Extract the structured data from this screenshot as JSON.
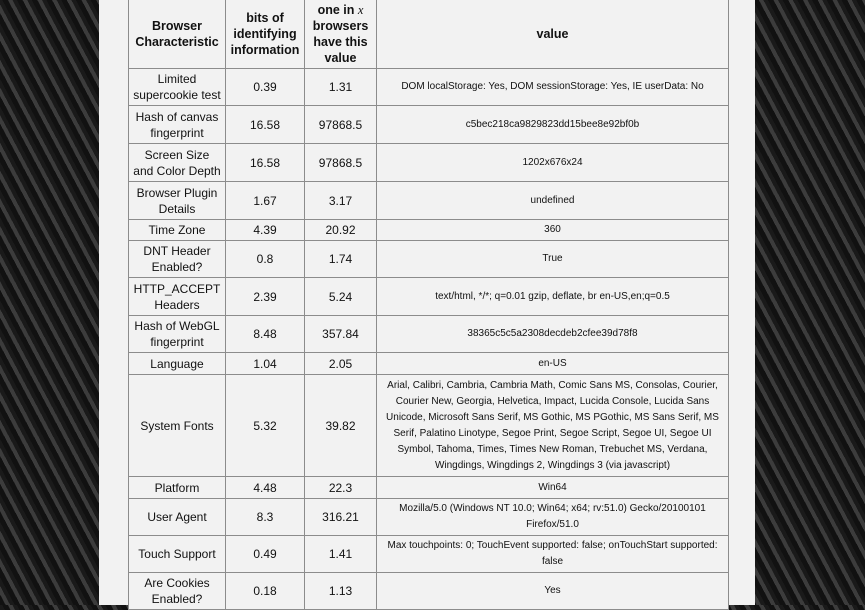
{
  "table": {
    "headers": [
      "Browser Characteristic",
      "bits of identifying information",
      "one in x browsers have this value",
      "value"
    ],
    "header_3_prefix": "one in ",
    "header_3_var": "x",
    "header_3_suffix": " browsers have this value",
    "rows": [
      {
        "characteristic": "Limited supercookie test",
        "bits": "0.39",
        "one_in_x": "1.31",
        "value": "DOM localStorage: Yes, DOM sessionStorage: Yes, IE userData: No"
      },
      {
        "characteristic": "Hash of canvas fingerprint",
        "bits": "16.58",
        "one_in_x": "97868.5",
        "value": "c5bec218ca9829823dd15bee8e92bf0b"
      },
      {
        "characteristic": "Screen Size and Color Depth",
        "bits": "16.58",
        "one_in_x": "97868.5",
        "value": "1202x676x24"
      },
      {
        "characteristic": "Browser Plugin Details",
        "bits": "1.67",
        "one_in_x": "3.17",
        "value": "undefined"
      },
      {
        "characteristic": "Time Zone",
        "bits": "4.39",
        "one_in_x": "20.92",
        "value": "360"
      },
      {
        "characteristic": "DNT Header Enabled?",
        "bits": "0.8",
        "one_in_x": "1.74",
        "value": "True"
      },
      {
        "characteristic": "HTTP_ACCEPT Headers",
        "bits": "2.39",
        "one_in_x": "5.24",
        "value": "text/html, */*; q=0.01 gzip, deflate, br en-US,en;q=0.5"
      },
      {
        "characteristic": "Hash of WebGL fingerprint",
        "bits": "8.48",
        "one_in_x": "357.84",
        "value": "38365c5c5a2308decdeb2cfee39d78f8"
      },
      {
        "characteristic": "Language",
        "bits": "1.04",
        "one_in_x": "2.05",
        "value": "en-US"
      },
      {
        "characteristic": "System Fonts",
        "bits": "5.32",
        "one_in_x": "39.82",
        "value": "Arial, Calibri, Cambria, Cambria Math, Comic Sans MS, Consolas, Courier, Courier New, Georgia, Helvetica, Impact, Lucida Console, Lucida Sans Unicode, Microsoft Sans Serif, MS Gothic, MS PGothic, MS Sans Serif, MS Serif, Palatino Linotype, Segoe Print, Segoe Script, Segoe UI, Segoe UI Symbol, Tahoma, Times, Times New Roman, Trebuchet MS, Verdana, Wingdings, Wingdings 2, Wingdings 3 (via javascript)"
      },
      {
        "characteristic": "Platform",
        "bits": "4.48",
        "one_in_x": "22.3",
        "value": "Win64"
      },
      {
        "characteristic": "User Agent",
        "bits": "8.3",
        "one_in_x": "316.21",
        "value": "Mozilla/5.0 (Windows NT 10.0; Win64; x64; rv:51.0) Gecko/20100101 Firefox/51.0"
      },
      {
        "characteristic": "Touch Support",
        "bits": "0.49",
        "one_in_x": "1.41",
        "value": "Max touchpoints: 0; TouchEvent supported: false; onTouchStart supported: false"
      },
      {
        "characteristic": "Are Cookies Enabled?",
        "bits": "0.18",
        "one_in_x": "1.13",
        "value": "Yes"
      }
    ]
  }
}
